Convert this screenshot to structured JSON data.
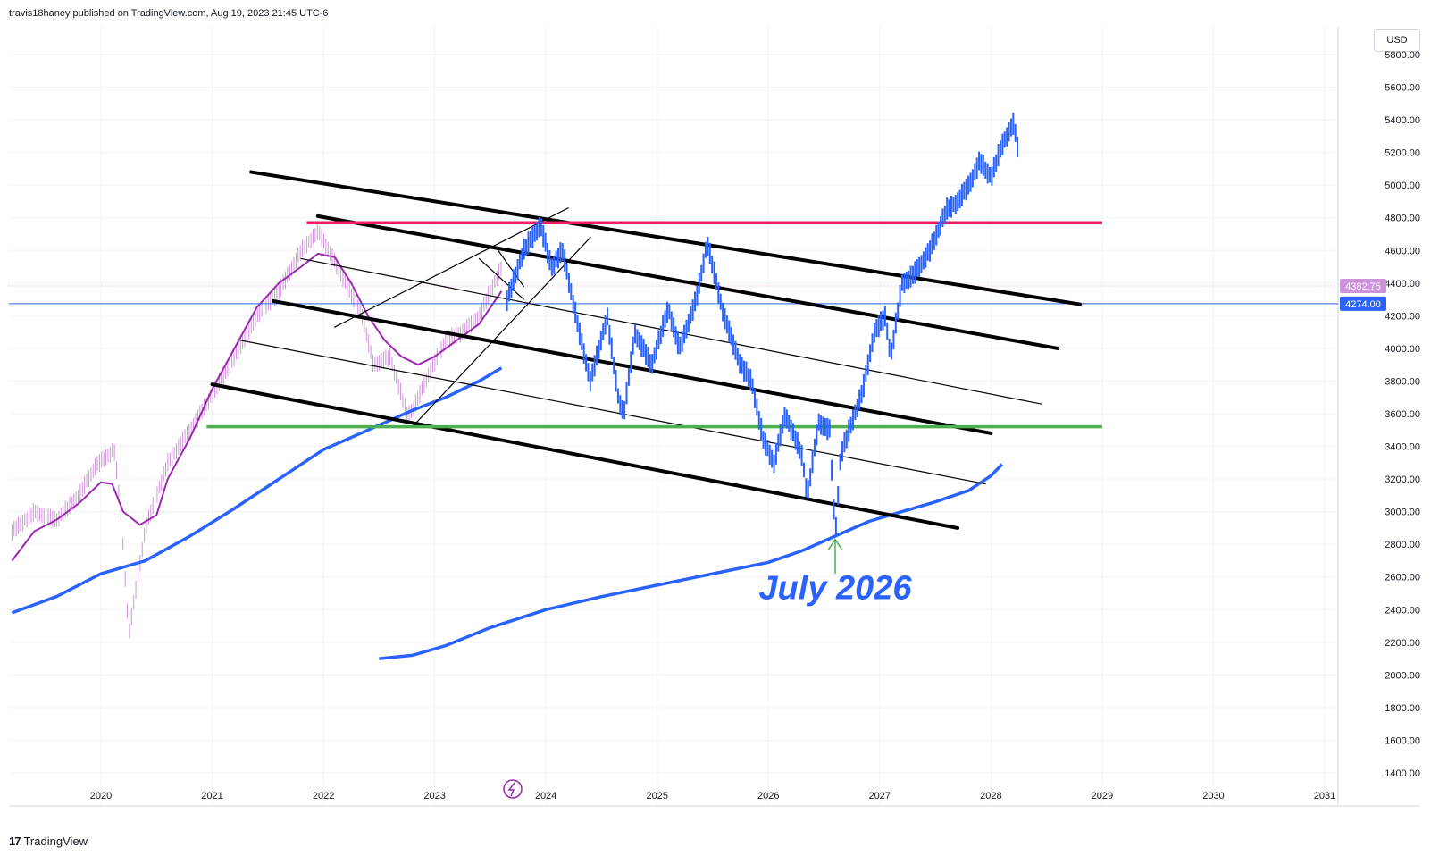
{
  "header": {
    "text": "travis18haney published on TradingView.com, Aug 19, 2023 21:45 UTC-6"
  },
  "currency": "USD",
  "footer": {
    "logo": "17",
    "brand": "TradingView"
  },
  "colors": {
    "main_series": "#2962ff",
    "history_bars": "#ce93d8",
    "short_ma": "#9c27b0",
    "long_ma": "#2962ff",
    "resistance": "#e91e63",
    "support": "#4caf50",
    "channel": "#000000",
    "annotation": "#2962ff",
    "arrow": "#4caf50"
  },
  "chart_data": {
    "type": "line",
    "title": "",
    "xlabel": "",
    "ylabel": "",
    "x_ticks": [
      "2020",
      "2021",
      "2022",
      "2023",
      "2024",
      "2025",
      "2026",
      "2027",
      "2028",
      "2029",
      "2030",
      "2031"
    ],
    "y_ticks": [
      "1400.00",
      "1600.00",
      "1800.00",
      "2000.00",
      "2200.00",
      "2400.00",
      "2600.00",
      "2800.00",
      "3000.00",
      "3200.00",
      "3400.00",
      "3600.00",
      "3800.00",
      "4000.00",
      "4200.00",
      "4400.00",
      "4600.00",
      "4800.00",
      "5000.00",
      "5200.00",
      "5400.00",
      "5600.00",
      "5800.00"
    ],
    "xlim": [
      2019.2,
      2031.1
    ],
    "ylim": [
      1300,
      5900
    ],
    "grid": true,
    "price_labels": [
      {
        "value": 4382.75,
        "text": "4382.75",
        "color": "#ce93d8"
      },
      {
        "value": 4274.0,
        "text": "4274.00",
        "color": "#2962ff"
      }
    ],
    "series": [
      {
        "kind": "history",
        "x": [
          2019.2,
          2019.4,
          2019.6,
          2019.8,
          2019.95,
          2020.05,
          2020.12,
          2020.18,
          2020.25,
          2020.4,
          2020.6,
          2020.8,
          2021.0,
          2021.2,
          2021.4,
          2021.6,
          2021.8,
          2021.95,
          2022.05,
          2022.2,
          2022.35,
          2022.45,
          2022.6,
          2022.75,
          2022.8,
          2022.95,
          2023.1,
          2023.25,
          2023.4,
          2023.6
        ],
        "values": [
          2880,
          3000,
          2950,
          3100,
          3280,
          3340,
          3380,
          3000,
          2250,
          2900,
          3300,
          3500,
          3720,
          3950,
          4200,
          4350,
          4600,
          4720,
          4600,
          4400,
          4200,
          3900,
          3950,
          3600,
          3620,
          3850,
          4050,
          4100,
          4200,
          4500
        ]
      },
      {
        "kind": "projection",
        "x": [
          2023.65,
          2023.8,
          2023.95,
          2024.05,
          2024.15,
          2024.3,
          2024.4,
          2024.55,
          2024.65,
          2024.7,
          2024.8,
          2024.95,
          2025.1,
          2025.2,
          2025.35,
          2025.45,
          2025.6,
          2025.75,
          2025.85,
          2025.95,
          2026.05,
          2026.15,
          2026.3,
          2026.35,
          2026.45,
          2026.55,
          2026.6,
          2026.65,
          2026.75,
          2026.85,
          2026.95,
          2027.05,
          2027.1,
          2027.2,
          2027.3,
          2027.45,
          2027.6,
          2027.7,
          2027.8,
          2027.9,
          2028.0,
          2028.1,
          2028.2,
          2028.25
        ],
        "values": [
          4300,
          4600,
          4760,
          4500,
          4600,
          4100,
          3800,
          4200,
          3700,
          3600,
          4100,
          3900,
          4250,
          4000,
          4300,
          4650,
          4200,
          3900,
          3800,
          3450,
          3300,
          3600,
          3350,
          3100,
          3550,
          3500,
          2850,
          3350,
          3550,
          3750,
          4100,
          4200,
          3950,
          4400,
          4450,
          4600,
          4850,
          4900,
          5000,
          5150,
          5050,
          5250,
          5380,
          5200
        ]
      },
      {
        "kind": "short_ma",
        "x": [
          2019.2,
          2019.4,
          2019.6,
          2019.8,
          2020.0,
          2020.1,
          2020.2,
          2020.35,
          2020.5,
          2020.6,
          2020.8,
          2021.0,
          2021.2,
          2021.4,
          2021.6,
          2021.8,
          2021.95,
          2022.1,
          2022.25,
          2022.4,
          2022.55,
          2022.7,
          2022.85,
          2023.0,
          2023.2,
          2023.4,
          2023.6
        ],
        "values": [
          2700,
          2880,
          2950,
          3050,
          3180,
          3170,
          3000,
          2920,
          2980,
          3200,
          3450,
          3750,
          4000,
          4250,
          4400,
          4500,
          4580,
          4560,
          4400,
          4200,
          4050,
          3950,
          3900,
          3950,
          4050,
          4150,
          4350
        ]
      },
      {
        "kind": "long_ma",
        "x": [
          2019.2,
          2019.6,
          2020.0,
          2020.4,
          2020.8,
          2021.2,
          2021.6,
          2022.0,
          2022.3,
          2022.5,
          2022.8,
          2023.1,
          2023.4,
          2023.6
        ],
        "values": [
          2380,
          2480,
          2620,
          2700,
          2850,
          3020,
          3200,
          3380,
          3470,
          3530,
          3620,
          3700,
          3800,
          3880
        ]
      },
      {
        "kind": "long_ma_projection",
        "x": [
          2022.5,
          2022.8,
          2023.1,
          2023.5,
          2024.0,
          2024.5,
          2025.0,
          2025.5,
          2026.0,
          2026.3,
          2026.6,
          2026.9,
          2027.2,
          2027.5,
          2027.8,
          2028.0,
          2028.1
        ],
        "values": [
          2100,
          2120,
          2180,
          2290,
          2400,
          2480,
          2550,
          2620,
          2690,
          2760,
          2850,
          2940,
          3000,
          3060,
          3130,
          3220,
          3290
        ]
      }
    ],
    "levels": [
      {
        "name": "resistance",
        "value": 4770,
        "x": [
          2021.85,
          2029.0
        ]
      },
      {
        "name": "support",
        "value": 3520,
        "x": [
          2020.95,
          2029.0
        ]
      }
    ],
    "trendlines": [
      {
        "x": [
          2021.35,
          2028.8
        ],
        "values": [
          5080,
          4270
        ],
        "weight": "bold"
      },
      {
        "x": [
          2021.95,
          2028.6
        ],
        "values": [
          4810,
          4000
        ],
        "weight": "bold"
      },
      {
        "x": [
          2021.55,
          2028.0
        ],
        "values": [
          4290,
          3480
        ],
        "weight": "bold"
      },
      {
        "x": [
          2021.0,
          2027.7
        ],
        "values": [
          3780,
          2900
        ],
        "weight": "bold"
      },
      {
        "x": [
          2021.8,
          2028.45
        ],
        "values": [
          4550,
          3660
        ],
        "weight": "thin"
      },
      {
        "x": [
          2021.25,
          2027.95
        ],
        "values": [
          4050,
          3170
        ],
        "weight": "thin"
      },
      {
        "x": [
          2022.1,
          2024.2
        ],
        "values": [
          4130,
          4860
        ],
        "weight": "thin"
      },
      {
        "x": [
          2022.8,
          2024.4
        ],
        "values": [
          3520,
          4680
        ],
        "weight": "thin"
      },
      {
        "x": [
          2023.4,
          2023.8
        ],
        "values": [
          4550,
          4300
        ],
        "weight": "thin"
      },
      {
        "x": [
          2023.55,
          2023.8
        ],
        "values": [
          4620,
          4380
        ],
        "weight": "thin"
      }
    ],
    "annotations": [
      {
        "text": "July 2026",
        "x": 2026.6,
        "value": 2540
      }
    ],
    "arrow": {
      "x": 2026.6,
      "from": 2620,
      "to": 2830
    }
  }
}
